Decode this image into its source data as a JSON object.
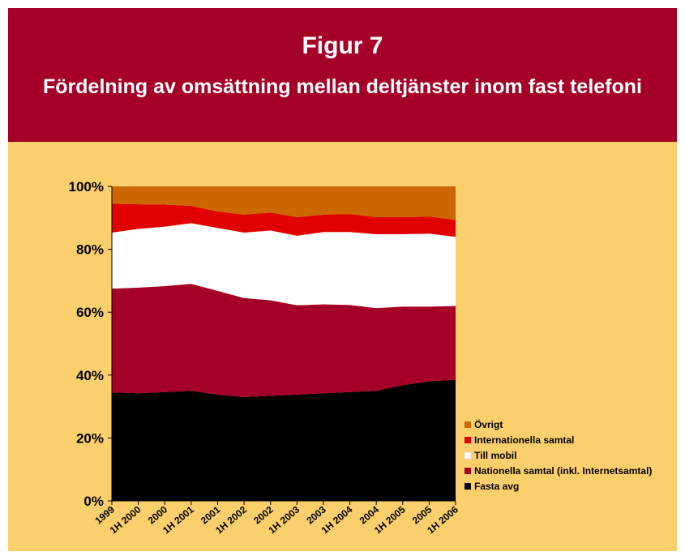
{
  "chart_data": {
    "type": "stacked_area",
    "title": "Figur 7",
    "subtitle": "Fördelning av omsättning mellan deltjänster inom fast telefoni",
    "categories": [
      "1999",
      "1H 2000",
      "2000",
      "1H 2001",
      "2001",
      "1H 2002",
      "2002",
      "1H 2003",
      "2003",
      "1H 2004",
      "2004",
      "1H 2005",
      "2005",
      "1H 2006"
    ],
    "series": [
      {
        "name": "Fasta avg",
        "color": "#000000",
        "values": [
          34.5,
          34.2,
          34.6,
          35.0,
          33.8,
          33.0,
          33.4,
          33.8,
          34.2,
          34.6,
          35.0,
          36.8,
          38.0,
          38.5
        ]
      },
      {
        "name": "Nationella samtal (inkl. Internetsamtal)",
        "color": "#a50028",
        "values": [
          33.0,
          33.6,
          33.7,
          34.0,
          33.0,
          31.5,
          30.4,
          28.4,
          28.3,
          27.7,
          26.3,
          25.0,
          23.8,
          23.5
        ]
      },
      {
        "name": "Till mobil",
        "color": "#ffffff",
        "values": [
          17.8,
          18.7,
          18.9,
          19.3,
          20.0,
          20.8,
          22.2,
          22.1,
          23.0,
          23.2,
          23.5,
          23.0,
          23.2,
          22.0
        ]
      },
      {
        "name": "Internationella samtal",
        "color": "#e00000",
        "values": [
          9.2,
          7.8,
          7.0,
          5.5,
          5.2,
          5.7,
          5.7,
          5.9,
          5.5,
          5.7,
          5.4,
          5.4,
          5.4,
          5.3
        ]
      },
      {
        "name": "Övrigt",
        "color": "#cc6600",
        "values": [
          5.5,
          5.7,
          5.8,
          6.2,
          8.0,
          9.0,
          8.3,
          9.8,
          9.0,
          8.8,
          9.8,
          9.8,
          9.6,
          10.7
        ]
      }
    ],
    "ylim": [
      0,
      100
    ],
    "yticks": [
      {
        "value": 0,
        "label": "0%"
      },
      {
        "value": 20,
        "label": "20%"
      },
      {
        "value": 40,
        "label": "40%"
      },
      {
        "value": 60,
        "label": "60%"
      },
      {
        "value": 80,
        "label": "80%"
      },
      {
        "value": 100,
        "label": "100%"
      }
    ],
    "grid": false,
    "legend": "right"
  }
}
